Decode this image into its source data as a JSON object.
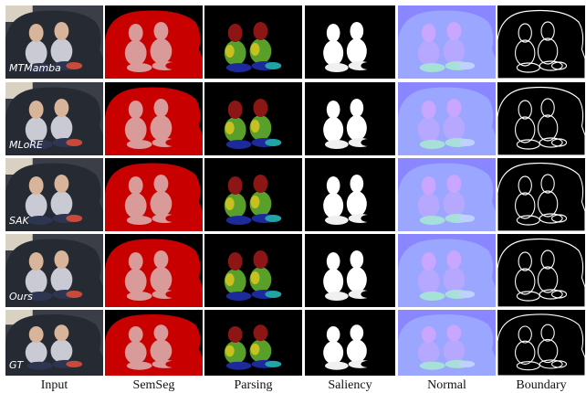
{
  "columns": [
    "Input",
    "SemSeg",
    "Parsing",
    "Saliency",
    "Normal",
    "Boundary"
  ],
  "rows": [
    "MTMamba",
    "MLoRE",
    "SAK",
    "Ours",
    "GT"
  ]
}
